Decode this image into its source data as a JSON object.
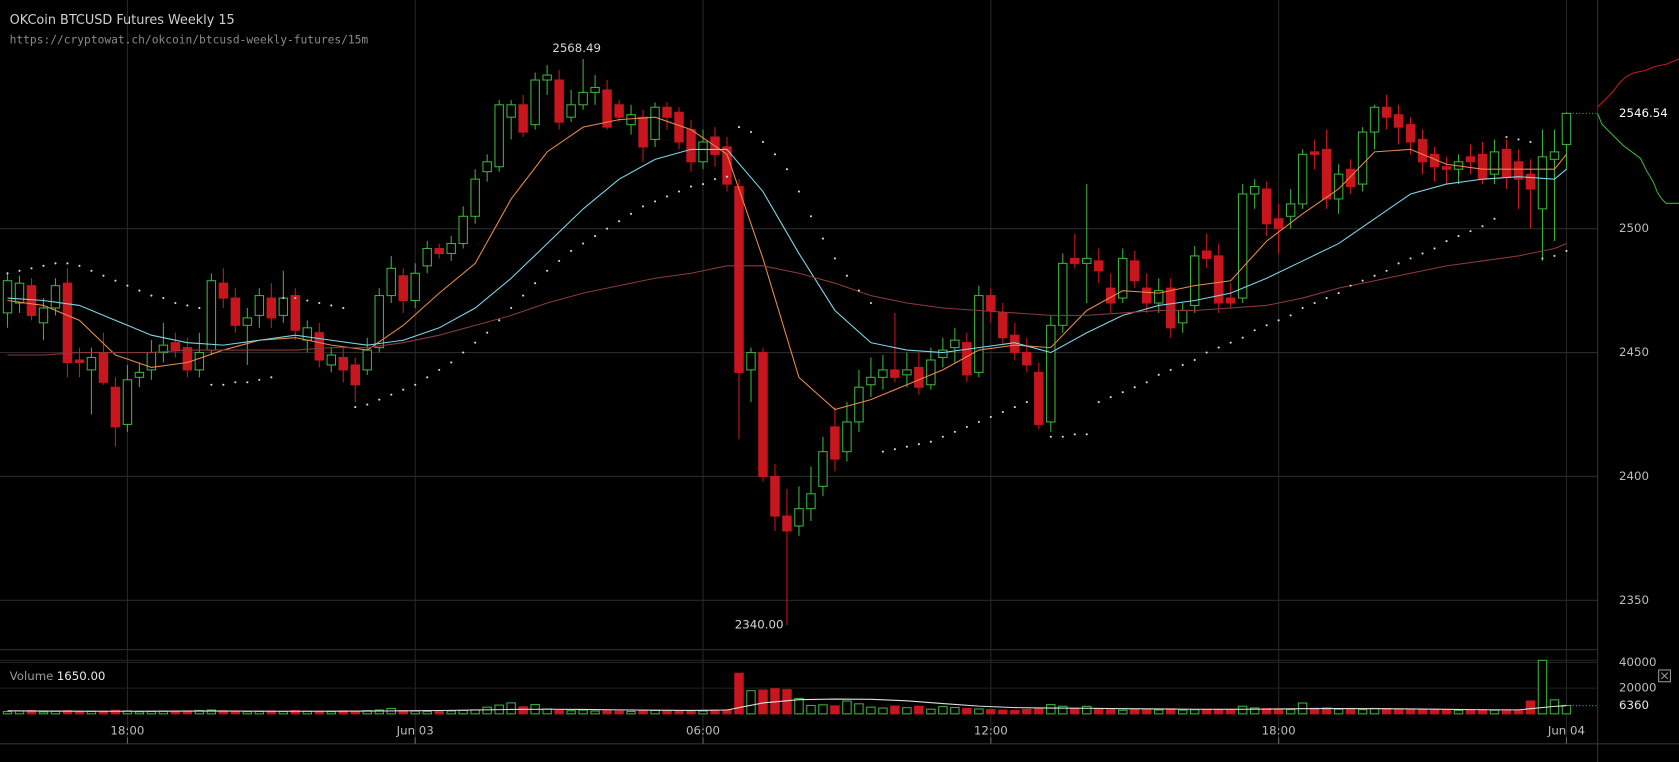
{
  "chart_data": {
    "type": "candlestick",
    "title": "OKCoin BTCUSD Futures Weekly 15",
    "subtitle": "https://cryptowat.ch/okcoin/btcusd-weekly-futures/15m",
    "xlim": [
      -0.625,
      132.6
    ],
    "xticks": [
      {
        "value": 10,
        "label": "18:00"
      },
      {
        "value": 34,
        "label": "Jun 03"
      },
      {
        "value": 58,
        "label": "06:00"
      },
      {
        "value": 82,
        "label": "12:00"
      },
      {
        "value": 106,
        "label": "18:00"
      },
      {
        "value": 130,
        "label": "Jun 04"
      }
    ],
    "ylim": [
      2330.1,
      2592.3
    ],
    "yticks": [
      2350,
      2400,
      2450,
      2500
    ],
    "grid": true,
    "up_color": "#3cb03c",
    "down_color": "#c8161e",
    "open": [
      2466,
      2470,
      2477,
      2462,
      2468,
      2478,
      2447,
      2443,
      2450,
      2436,
      2421,
      2440,
      2443,
      2450,
      2454,
      2452,
      2443,
      2451,
      2478,
      2472,
      2461,
      2465,
      2472,
      2465,
      2473,
      2455,
      2458,
      2445,
      2448,
      2445,
      2443,
      2452,
      2473,
      2481,
      2471,
      2485,
      2492,
      2490,
      2494,
      2505,
      2523,
      2525,
      2545,
      2550,
      2542,
      2560,
      2560,
      2545,
      2550,
      2555,
      2556,
      2550,
      2542,
      2545,
      2536,
      2549,
      2547,
      2540,
      2527,
      2537,
      2533,
      2517,
      2443,
      2450,
      2400,
      2384,
      2380,
      2387,
      2396,
      2420,
      2410,
      2422,
      2437,
      2440,
      2443,
      2441,
      2444,
      2437,
      2448,
      2452,
      2454,
      2442,
      2473,
      2466,
      2457,
      2450,
      2442,
      2422,
      2461,
      2488,
      2486,
      2487,
      2476,
      2472,
      2487,
      2476,
      2470,
      2476,
      2462,
      2469,
      2491,
      2489,
      2472,
      2472,
      2514,
      2516,
      2504,
      2505,
      2510,
      2531,
      2532,
      2512,
      2524,
      2518,
      2539,
      2549,
      2546,
      2542,
      2536,
      2530,
      2525,
      2524,
      2529,
      2530,
      2522,
      2532,
      2527,
      2522,
      2508,
      2528,
      2534
    ],
    "high": [
      2482,
      2481,
      2480,
      2472,
      2480,
      2484,
      2452,
      2452,
      2458,
      2440,
      2445,
      2446,
      2455,
      2462,
      2458,
      2456,
      2458,
      2482,
      2484,
      2476,
      2468,
      2476,
      2478,
      2483,
      2476,
      2463,
      2462,
      2452,
      2452,
      2448,
      2456,
      2476,
      2489,
      2484,
      2486,
      2495,
      2494,
      2497,
      2509,
      2524,
      2530,
      2552,
      2552,
      2554,
      2563,
      2566,
      2564,
      2556,
      2568.49,
      2562,
      2560,
      2552,
      2550,
      2548,
      2551,
      2551,
      2549,
      2544,
      2540,
      2541,
      2537,
      2520,
      2452,
      2452,
      2405,
      2395,
      2396,
      2404,
      2416,
      2428,
      2430,
      2443,
      2448,
      2449,
      2466,
      2450,
      2450,
      2452,
      2456,
      2460,
      2458,
      2477,
      2476,
      2470,
      2462,
      2456,
      2446,
      2465,
      2490,
      2498,
      2518,
      2492,
      2482,
      2492,
      2491,
      2482,
      2480,
      2480,
      2470,
      2493,
      2498,
      2494,
      2478,
      2518,
      2520,
      2519,
      2510,
      2516,
      2532,
      2536,
      2540,
      2526,
      2528,
      2541,
      2550,
      2554,
      2550,
      2545,
      2540,
      2533,
      2529,
      2530,
      2534,
      2535,
      2536,
      2536,
      2532,
      2528,
      2540,
      2540,
      2547
    ],
    "low": [
      2460,
      2466,
      2463,
      2455,
      2465,
      2440,
      2440,
      2425,
      2437,
      2412,
      2418,
      2436,
      2439,
      2446,
      2448,
      2440,
      2440,
      2449,
      2468,
      2458,
      2445,
      2460,
      2460,
      2462,
      2455,
      2450,
      2444,
      2442,
      2438,
      2430,
      2441,
      2450,
      2470,
      2466,
      2468,
      2482,
      2488,
      2487,
      2492,
      2502,
      2519,
      2523,
      2536,
      2537,
      2540,
      2554,
      2540,
      2543,
      2548,
      2550,
      2540,
      2543,
      2538,
      2527,
      2533,
      2540,
      2532,
      2523,
      2524,
      2525,
      2515,
      2415,
      2430,
      2398,
      2378,
      2340,
      2376,
      2382,
      2392,
      2402,
      2406,
      2418,
      2432,
      2435,
      2438,
      2436,
      2433,
      2435,
      2444,
      2446,
      2438,
      2440,
      2462,
      2453,
      2447,
      2442,
      2419,
      2418,
      2458,
      2484,
      2470,
      2478,
      2466,
      2470,
      2476,
      2466,
      2466,
      2456,
      2458,
      2466,
      2484,
      2466,
      2468,
      2470,
      2508,
      2497,
      2490,
      2500,
      2508,
      2524,
      2508,
      2506,
      2514,
      2515,
      2532,
      2540,
      2534,
      2530,
      2522,
      2519,
      2518,
      2518,
      2522,
      2518,
      2518,
      2516,
      2508,
      2500,
      2487,
      2495,
      2524
    ],
    "close": [
      2479,
      2478,
      2465,
      2468,
      2477,
      2446,
      2446,
      2448,
      2438,
      2420,
      2439,
      2442,
      2450,
      2453,
      2451,
      2443,
      2450,
      2479,
      2472,
      2461,
      2464,
      2473,
      2464,
      2472,
      2459,
      2460,
      2447,
      2449,
      2443,
      2437,
      2451,
      2473,
      2484,
      2471,
      2482,
      2492,
      2490,
      2494,
      2505,
      2520,
      2527,
      2550,
      2550,
      2539,
      2560,
      2562,
      2543,
      2550,
      2555,
      2557,
      2541,
      2545,
      2546,
      2533,
      2549,
      2545,
      2535,
      2527,
      2535,
      2530,
      2518,
      2442,
      2450,
      2400,
      2384,
      2378,
      2387,
      2393,
      2410,
      2407,
      2422,
      2436,
      2440,
      2443,
      2440,
      2443,
      2436,
      2447,
      2451,
      2455,
      2441,
      2473,
      2467,
      2456,
      2450,
      2445,
      2421,
      2461,
      2486,
      2486,
      2488,
      2483,
      2470,
      2488,
      2479,
      2470,
      2475,
      2460,
      2467,
      2489,
      2488,
      2470,
      2470,
      2514,
      2517,
      2502,
      2500,
      2510,
      2530,
      2530,
      2512,
      2522,
      2517,
      2539,
      2549,
      2545,
      2541,
      2535,
      2527,
      2525,
      2524,
      2527,
      2527,
      2520,
      2531,
      2521,
      2520,
      2516,
      2529,
      2531,
      2546.54
    ],
    "last_price": 2546.54,
    "high_label": 2568.49,
    "low_label": {
      "value": 2340,
      "label": "2340.00"
    },
    "lines": [
      {
        "color": "#e8894a",
        "x": [
          0,
          3,
          6,
          9,
          12,
          15,
          18,
          21,
          24,
          27,
          30,
          33,
          36,
          39,
          42,
          45,
          48,
          51,
          54,
          57,
          60,
          63,
          66,
          69,
          72,
          75,
          78,
          81,
          84,
          87,
          90,
          93,
          96,
          99,
          102,
          105,
          108,
          111,
          114,
          117,
          120,
          123,
          126,
          129,
          130
        ],
        "values": [
          2471,
          2469,
          2463,
          2449,
          2444,
          2446,
          2451,
          2455,
          2456,
          2453,
          2451,
          2461,
          2474,
          2486,
          2512,
          2531,
          2541,
          2544,
          2545,
          2540,
          2530,
          2488,
          2440,
          2427,
          2431,
          2437,
          2443,
          2451,
          2453,
          2452,
          2467,
          2475,
          2474,
          2477,
          2479,
          2495,
          2506,
          2516,
          2531,
          2532,
          2526,
          2524,
          2524,
          2524,
          2530
        ]
      },
      {
        "color": "#7fd6e8",
        "x": [
          0,
          3,
          6,
          9,
          12,
          15,
          18,
          21,
          24,
          27,
          30,
          33,
          36,
          39,
          42,
          45,
          48,
          51,
          54,
          57,
          60,
          63,
          66,
          69,
          72,
          75,
          78,
          81,
          84,
          87,
          90,
          93,
          96,
          99,
          102,
          105,
          108,
          111,
          114,
          117,
          120,
          123,
          126,
          129,
          130
        ],
        "values": [
          2472,
          2471,
          2469,
          2463,
          2457,
          2454,
          2453,
          2455,
          2457,
          2455,
          2453,
          2455,
          2460,
          2468,
          2480,
          2494,
          2508,
          2520,
          2528,
          2532,
          2532,
          2515,
          2490,
          2467,
          2454,
          2451,
          2450,
          2452,
          2454,
          2450,
          2458,
          2465,
          2469,
          2471,
          2474,
          2480,
          2487,
          2494,
          2504,
          2514,
          2518,
          2520,
          2521,
          2520,
          2524
        ]
      },
      {
        "color": "#8b3a3a",
        "x": [
          0,
          3,
          6,
          9,
          12,
          15,
          18,
          21,
          24,
          27,
          30,
          33,
          36,
          39,
          42,
          45,
          48,
          51,
          54,
          57,
          60,
          63,
          66,
          69,
          72,
          75,
          78,
          81,
          84,
          87,
          90,
          93,
          96,
          99,
          102,
          105,
          108,
          111,
          114,
          117,
          120,
          123,
          126,
          129,
          130
        ],
        "values": [
          2449,
          2449,
          2450,
          2450,
          2450,
          2451,
          2451,
          2451,
          2451,
          2452,
          2452,
          2454,
          2457,
          2461,
          2465,
          2470,
          2474,
          2477,
          2480,
          2482,
          2485,
          2485,
          2482,
          2478,
          2473,
          2470,
          2468,
          2467,
          2466,
          2465,
          2465,
          2466,
          2467,
          2467,
          2468,
          2469,
          2472,
          2476,
          2479,
          2482,
          2485,
          2487,
          2489,
          2492,
          2494
        ]
      }
    ],
    "sar": {
      "color": "#d8d8d8",
      "values": [
        2482,
        2483,
        2484,
        2485,
        2486,
        2486,
        2485,
        2483,
        2481,
        2479,
        2477,
        2475,
        2473,
        2472,
        2470,
        2469,
        2468,
        2437,
        2437,
        2438,
        2438,
        2439,
        2440,
        2472,
        2472,
        2471,
        2470,
        2469,
        2468,
        2428,
        2429,
        2431,
        2433,
        2435,
        2437,
        2440,
        2443,
        2446,
        2450,
        2454,
        2458,
        2463,
        2468,
        2473,
        2478,
        2483,
        2487,
        2491,
        2494,
        2497,
        2500,
        2503,
        2506,
        2509,
        2511,
        2513,
        2515,
        2517,
        2518,
        2520,
        2521,
        2541,
        2539,
        2535,
        2530,
        2524,
        2515,
        2505,
        2496,
        2488,
        2481,
        2475,
        2470,
        2410,
        2411,
        2412,
        2413,
        2414,
        2416,
        2418,
        2420,
        2422,
        2424,
        2426,
        2428,
        2430,
        null,
        2416,
        2416,
        2417,
        2417,
        2430,
        2432,
        2434,
        2436,
        2438,
        2441,
        2443,
        2445,
        2447,
        2450,
        2452,
        2454,
        2456,
        2459,
        2461,
        2463,
        2465,
        2468,
        2470,
        2472,
        2474,
        2477,
        2479,
        2481,
        2483,
        2486,
        2488,
        2490,
        2492,
        2495,
        2497,
        2499,
        2501,
        2504,
        2537,
        2536,
        2535,
        2488,
        2489,
        2491
      ]
    },
    "volume": {
      "label": "Volume",
      "readout": {
        "value": 1650,
        "label": "1650.00"
      },
      "ylim": [
        0,
        45800
      ],
      "yticks": [
        20000,
        40000
      ],
      "current": 6360,
      "values": [
        1800,
        2200,
        2600,
        1500,
        2000,
        2400,
        1700,
        1900,
        2100,
        2800,
        2300,
        1600,
        1800,
        2000,
        1500,
        2200,
        2600,
        3000,
        2400,
        2100,
        1700,
        1900,
        2200,
        1800,
        2600,
        2000,
        1500,
        1700,
        2300,
        1900,
        2500,
        3000,
        4200,
        2400,
        2100,
        1900,
        1800,
        2200,
        2600,
        3100,
        5200,
        6800,
        8500,
        5400,
        7200,
        3800,
        2600,
        2400,
        2900,
        2200,
        2500,
        2100,
        1800,
        2300,
        2600,
        2000,
        1900,
        2400,
        2200,
        2700,
        3100,
        31600,
        18000,
        18500,
        19500,
        18800,
        12000,
        6500,
        7000,
        6200,
        10000,
        7800,
        5200,
        4500,
        6000,
        4800,
        5900,
        3600,
        5600,
        4900,
        4200,
        3800,
        3300,
        2900,
        2600,
        3400,
        4500,
        7200,
        5900,
        4300,
        5800,
        3900,
        3200,
        2800,
        3400,
        3600,
        3000,
        3900,
        2900,
        3200,
        3500,
        3100,
        2700,
        5900,
        4600,
        4100,
        3800,
        3300,
        8400,
        4400,
        4800,
        3600,
        3900,
        3300,
        4200,
        4100,
        3600,
        3200,
        3400,
        2900,
        2600,
        2700,
        3000,
        3100,
        2800,
        2600,
        2900,
        10000,
        41600,
        10900,
        6500
      ],
      "ma": {
        "color": "#e0e0e0",
        "x": [
          0,
          3,
          6,
          9,
          12,
          15,
          18,
          21,
          24,
          27,
          30,
          33,
          36,
          39,
          42,
          45,
          48,
          51,
          54,
          57,
          60,
          63,
          66,
          69,
          72,
          75,
          78,
          81,
          84,
          87,
          90,
          93,
          96,
          99,
          102,
          105,
          108,
          111,
          114,
          117,
          120,
          123,
          126,
          129,
          130
        ],
        "values": [
          2300,
          2200,
          2100,
          2000,
          2100,
          2200,
          2200,
          2100,
          2000,
          2100,
          2200,
          2300,
          2600,
          3000,
          3400,
          3600,
          3400,
          3100,
          2800,
          2700,
          3000,
          8500,
          11000,
          11500,
          11300,
          10200,
          8000,
          6000,
          4800,
          4500,
          4300,
          4000,
          3800,
          3600,
          3500,
          3700,
          4000,
          4100,
          4000,
          3800,
          3500,
          3200,
          3100,
          5800,
          6360
        ]
      }
    }
  }
}
